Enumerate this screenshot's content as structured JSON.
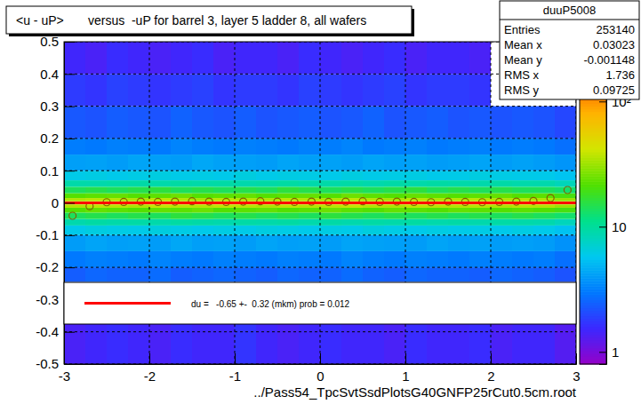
{
  "chart_data": {
    "type": "heatmap",
    "title": "<u - uP>       versus  -uP for barrel 3, layer 5 ladder 8, all wafers",
    "x_label": "../Pass54_TpcSvtSsdPlotsG40GNFP25rCut0.5cm.root",
    "xlim": [
      -3,
      3
    ],
    "ylim": [
      -0.5,
      0.5
    ],
    "xticks": [
      -3,
      -2,
      -1,
      0,
      1,
      2,
      3
    ],
    "yticks": [
      -0.5,
      -0.4,
      -0.3,
      -0.2,
      -0.1,
      0,
      0.1,
      0.2,
      0.3,
      0.4,
      0.5
    ],
    "grid": true,
    "x_bins": [
      -3,
      -2.75,
      -2.5,
      -2.25,
      -2,
      -1.75,
      -1.5,
      -1.25,
      -1,
      -0.75,
      -0.5,
      -0.25,
      0,
      0.25,
      0.5,
      0.75,
      1,
      1.25,
      1.5,
      1.75,
      2,
      2.25,
      2.5,
      2.75,
      3
    ],
    "y_bins": [
      -0.5,
      -0.36,
      -0.245,
      -0.2,
      -0.15,
      -0.1,
      -0.07,
      -0.05,
      -0.03,
      -0.015,
      -0.005,
      0.005,
      0.015,
      0.03,
      0.05,
      0.07,
      0.1,
      0.15,
      0.2,
      0.3,
      0.4,
      0.5
    ],
    "cells": [
      [
        1.4,
        1.5,
        1.6,
        1.5,
        1.4,
        1.6,
        1.5,
        1.5,
        1.7,
        1.5,
        1.4,
        1.5,
        1.6,
        1.5,
        1.5,
        1.4,
        1.6,
        1.5,
        1.5,
        1.6,
        1.4,
        1.5,
        1.5,
        1.3
      ],
      [
        null,
        null,
        null,
        null,
        null,
        null,
        null,
        null,
        null,
        null,
        null,
        null,
        null,
        null,
        null,
        null,
        null,
        null,
        null,
        null,
        null,
        null,
        null,
        null
      ],
      [
        2.4,
        2.6,
        2.5,
        2.5,
        2.7,
        2.4,
        2.5,
        2.6,
        2.5,
        2.4,
        2.6,
        2.5,
        2.5,
        2.7,
        2.5,
        2.4,
        2.6,
        2.5,
        2.5,
        2.4,
        2.6,
        2.5,
        2.4,
        2.2
      ],
      [
        3.0,
        3.2,
        3.1,
        3.0,
        3.3,
        3.1,
        3.0,
        3.2,
        3.1,
        3.0,
        3.2,
        3.1,
        3.0,
        3.3,
        3.1,
        3.0,
        3.2,
        3.1,
        3.0,
        3.2,
        3.1,
        3.0,
        3.1,
        2.8
      ],
      [
        4.0,
        4.3,
        4.1,
        4.2,
        4.0,
        4.4,
        4.1,
        4.2,
        4.0,
        4.3,
        4.1,
        4.2,
        4.0,
        4.3,
        4.2,
        4.1,
        4.0,
        4.3,
        4.1,
        4.2,
        4.0,
        4.1,
        4.0,
        3.7
      ],
      [
        6.0,
        6.4,
        6.2,
        6.1,
        6.5,
        6.2,
        6.0,
        6.3,
        6.1,
        6.4,
        6.2,
        6.0,
        6.3,
        6.1,
        6.5,
        6.2,
        6.0,
        6.3,
        6.1,
        6.2,
        6.0,
        6.3,
        6.0,
        5.5
      ],
      [
        9.0,
        9.5,
        9.2,
        9.4,
        9.1,
        9.6,
        9.3,
        9.0,
        9.4,
        9.2,
        9.5,
        9.1,
        9.3,
        9.0,
        9.4,
        9.2,
        9.6,
        9.1,
        9.3,
        9.0,
        9.4,
        9.2,
        9.0,
        8.2
      ],
      [
        14,
        15,
        14,
        15,
        14,
        16,
        15,
        14,
        15,
        14,
        15,
        14,
        16,
        15,
        14,
        15,
        14,
        15,
        14,
        15,
        14,
        15,
        14,
        13
      ],
      [
        22,
        24,
        23,
        22,
        24,
        23,
        25,
        22,
        23,
        24,
        22,
        23,
        25,
        23,
        22,
        24,
        23,
        22,
        24,
        23,
        22,
        23,
        22,
        20
      ],
      [
        35,
        37,
        36,
        34,
        38,
        36,
        35,
        37,
        36,
        34,
        37,
        35,
        36,
        38,
        35,
        34,
        37,
        36,
        35,
        36,
        34,
        36,
        35,
        31
      ],
      [
        45,
        48,
        46,
        47,
        45,
        49,
        46,
        47,
        45,
        48,
        46,
        47,
        45,
        49,
        46,
        47,
        45,
        48,
        46,
        47,
        45,
        46,
        45,
        40
      ],
      [
        35,
        37,
        36,
        35,
        38,
        36,
        34,
        37,
        36,
        35,
        37,
        36,
        35,
        38,
        36,
        34,
        37,
        35,
        36,
        37,
        35,
        36,
        35,
        31
      ],
      [
        22,
        23,
        24,
        22,
        23,
        25,
        22,
        23,
        24,
        22,
        23,
        24,
        22,
        25,
        23,
        22,
        24,
        23,
        22,
        23,
        24,
        22,
        23,
        20
      ],
      [
        14,
        15,
        14,
        15,
        16,
        14,
        15,
        14,
        15,
        14,
        16,
        15,
        14,
        15,
        14,
        15,
        16,
        14,
        15,
        14,
        15,
        14,
        14,
        13
      ],
      [
        9.2,
        9.0,
        9.4,
        9.3,
        9.1,
        9.5,
        9.2,
        9.4,
        9.0,
        9.3,
        9.6,
        9.1,
        9.2,
        9.4,
        9.0,
        9.3,
        9.1,
        9.5,
        9.2,
        9.0,
        9.3,
        9.1,
        9.0,
        8.3
      ],
      [
        6.1,
        6.3,
        6.0,
        6.2,
        6.4,
        6.1,
        6.2,
        6.0,
        6.5,
        6.1,
        6.3,
        6.2,
        6.0,
        6.4,
        6.1,
        6.2,
        6.3,
        6.0,
        6.1,
        6.4,
        6.2,
        6.1,
        6.0,
        5.6
      ],
      [
        4.1,
        4.2,
        4.0,
        4.3,
        4.1,
        4.0,
        4.4,
        4.2,
        4.1,
        4.0,
        4.3,
        4.1,
        4.2,
        4.0,
        4.3,
        4.1,
        4.2,
        4.0,
        4.1,
        4.3,
        4.0,
        4.2,
        4.0,
        3.8
      ],
      [
        3.1,
        3.0,
        3.2,
        3.1,
        3.0,
        3.3,
        3.1,
        3.0,
        3.2,
        3.1,
        3.0,
        3.2,
        3.1,
        3.3,
        3.0,
        3.1,
        3.2,
        3.0,
        3.1,
        3.2,
        3.0,
        3.1,
        3.0,
        2.8
      ],
      [
        2.3,
        2.2,
        2.4,
        2.3,
        2.2,
        2.5,
        2.3,
        2.2,
        2.4,
        2.2,
        2.3,
        2.4,
        2.2,
        2.3,
        2.5,
        2.2,
        2.3,
        2.4,
        2.2,
        2.3,
        2.2,
        2.3,
        2.2,
        2.0
      ],
      [
        1.8,
        1.7,
        1.9,
        1.8,
        1.7,
        1.8,
        1.9,
        1.7,
        1.8,
        1.8,
        1.7,
        1.9,
        1.8,
        1.7,
        1.8,
        1.9,
        1.7,
        1.8,
        1.8,
        1.7,
        null,
        null,
        null,
        null
      ],
      [
        1.5,
        1.4,
        1.6,
        1.5,
        1.4,
        1.5,
        1.6,
        1.4,
        1.5,
        1.5,
        1.4,
        1.6,
        1.5,
        1.4,
        1.5,
        1.6,
        1.4,
        1.5,
        1.5,
        1.4,
        null,
        null,
        null,
        null
      ]
    ],
    "color_range": [
      0.8,
      300
    ],
    "color_ticks": [
      1,
      10,
      {
        "value": 100,
        "label": "10²"
      }
    ],
    "series": [
      {
        "type": "scatter",
        "marker": "circle",
        "color": "#806000",
        "x": [
          -2.9,
          -2.7,
          -2.5,
          -2.3,
          -2.1,
          -1.9,
          -1.7,
          -1.5,
          -1.3,
          -1.1,
          -0.9,
          -0.7,
          -0.5,
          -0.3,
          -0.1,
          0.1,
          0.3,
          0.5,
          0.7,
          0.9,
          1.1,
          1.3,
          1.5,
          1.7,
          1.9,
          2.1,
          2.3,
          2.5,
          2.7,
          2.9
        ],
        "values": [
          -0.04,
          -0.01,
          0.002,
          0.003,
          0.004,
          0.003,
          0.004,
          0.005,
          0.004,
          0.003,
          0.004,
          0.005,
          0.004,
          0.003,
          0.004,
          0.003,
          0.004,
          0.005,
          0.003,
          0.004,
          0.003,
          0.002,
          0.004,
          0.003,
          0.002,
          0.003,
          0.004,
          0.006,
          0.015,
          0.04
        ]
      },
      {
        "type": "line",
        "name": "du =   -0.65 +-  0.32 (mkm) prob = 0.012",
        "color": "#ff0000",
        "x": [
          -3,
          3
        ],
        "values": [
          -6.5e-05,
          -6.5e-05
        ]
      }
    ],
    "stats": {
      "name": "duuP5008",
      "entries": [
        {
          "label": "Entries",
          "value": 253140
        },
        {
          "label": "Mean x",
          "value": 0.03023
        },
        {
          "label": "Mean y",
          "value": -0.001148
        },
        {
          "label": "RMS x",
          "value": 1.736
        },
        {
          "label": "RMS y",
          "value": 0.09725
        }
      ]
    }
  }
}
